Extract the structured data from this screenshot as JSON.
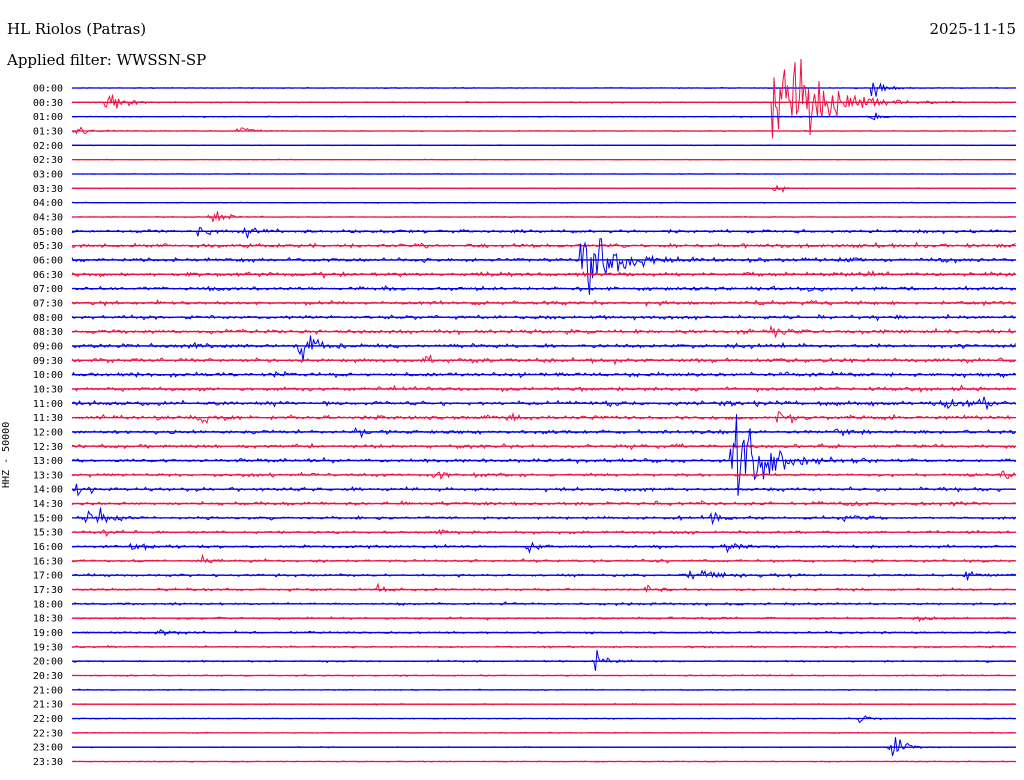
{
  "header": {
    "station": "HL Riolos (Patras)",
    "filter": "Applied filter: WWSSN-SP",
    "date": "2025-11-15",
    "channel": "HHZ - 50000"
  },
  "chart_data": {
    "type": "line",
    "title": "HL Riolos (Patras)",
    "subtitle": "Applied filter: WWSSN-SP",
    "ylabel": "HHZ - 50000",
    "y_tick_labels": [
      "00:00",
      "00:30",
      "01:00",
      "01:30",
      "02:00",
      "02:30",
      "03:00",
      "03:30",
      "04:00",
      "04:30",
      "05:00",
      "05:30",
      "06:00",
      "06:30",
      "07:00",
      "07:30",
      "08:00",
      "08:30",
      "09:00",
      "09:30",
      "10:00",
      "10:30",
      "11:00",
      "11:30",
      "12:00",
      "12:30",
      "13:00",
      "13:30",
      "14:00",
      "14:30",
      "15:00",
      "15:30",
      "16:00",
      "16:30",
      "17:00",
      "17:30",
      "18:00",
      "18:30",
      "19:00",
      "19:30",
      "20:00",
      "20:30",
      "21:00",
      "21:30",
      "22:00",
      "22:30",
      "23:00",
      "23:30"
    ],
    "line_minutes": 30,
    "trace_colors": [
      "#0000ee",
      "#ee1144"
    ],
    "noise_levels": [
      0.06,
      0.08,
      0.07,
      0.07,
      0.05,
      0.05,
      0.05,
      0.06,
      0.06,
      0.07,
      0.25,
      0.3,
      0.3,
      0.32,
      0.3,
      0.28,
      0.28,
      0.3,
      0.3,
      0.32,
      0.3,
      0.3,
      0.32,
      0.3,
      0.28,
      0.28,
      0.25,
      0.25,
      0.25,
      0.25,
      0.22,
      0.2,
      0.2,
      0.2,
      0.2,
      0.18,
      0.18,
      0.16,
      0.15,
      0.14,
      0.12,
      0.1,
      0.08,
      0.08,
      0.07,
      0.07,
      0.06,
      0.07
    ],
    "events": [
      {
        "line": 0,
        "minute": 25.4,
        "amplitude": 2.0
      },
      {
        "line": 1,
        "minute": 1.1,
        "amplitude": 3.2
      },
      {
        "line": 1,
        "minute": 22.3,
        "amplitude": 14.0
      },
      {
        "line": 2,
        "minute": 25.3,
        "amplitude": 1.2
      },
      {
        "line": 3,
        "minute": 0.1,
        "amplitude": 1.0
      },
      {
        "line": 3,
        "minute": 5.3,
        "amplitude": 1.0
      },
      {
        "line": 7,
        "minute": 22.3,
        "amplitude": 1.0
      },
      {
        "line": 9,
        "minute": 4.4,
        "amplitude": 1.6
      },
      {
        "line": 10,
        "minute": 4.0,
        "amplitude": 1.2
      },
      {
        "line": 10,
        "minute": 5.5,
        "amplitude": 1.0
      },
      {
        "line": 12,
        "minute": 16.2,
        "amplitude": 9.0
      },
      {
        "line": 17,
        "minute": 22.2,
        "amplitude": 1.2
      },
      {
        "line": 18,
        "minute": 7.2,
        "amplitude": 4.0
      },
      {
        "line": 18,
        "minute": 3.9,
        "amplitude": 0.6
      },
      {
        "line": 19,
        "minute": 11.2,
        "amplitude": 0.7
      },
      {
        "line": 21,
        "minute": 16.2,
        "amplitude": 0.7
      },
      {
        "line": 22,
        "minute": 27.8,
        "amplitude": 1.4
      },
      {
        "line": 22,
        "minute": 28.8,
        "amplitude": 1.2
      },
      {
        "line": 23,
        "minute": 4.0,
        "amplitude": 1.0
      },
      {
        "line": 23,
        "minute": 13.7,
        "amplitude": 1.2
      },
      {
        "line": 23,
        "minute": 22.4,
        "amplitude": 1.8
      },
      {
        "line": 24,
        "minute": 9.0,
        "amplitude": 1.0
      },
      {
        "line": 24,
        "minute": 24.3,
        "amplitude": 0.8
      },
      {
        "line": 26,
        "minute": 21.0,
        "amplitude": 10.0
      },
      {
        "line": 27,
        "minute": 11.5,
        "amplitude": 1.0
      },
      {
        "line": 27,
        "minute": 29.5,
        "amplitude": 1.0
      },
      {
        "line": 28,
        "minute": 0.1,
        "amplitude": 1.0
      },
      {
        "line": 29,
        "minute": 24.6,
        "amplitude": 0.9
      },
      {
        "line": 30,
        "minute": 0.5,
        "amplitude": 3.0
      },
      {
        "line": 30,
        "minute": 20.1,
        "amplitude": 1.4
      },
      {
        "line": 30,
        "minute": 24.6,
        "amplitude": 1.2
      },
      {
        "line": 31,
        "minute": 1.0,
        "amplitude": 1.0
      },
      {
        "line": 31,
        "minute": 11.6,
        "amplitude": 0.8
      },
      {
        "line": 32,
        "minute": 1.9,
        "amplitude": 1.2
      },
      {
        "line": 32,
        "minute": 14.5,
        "amplitude": 1.2
      },
      {
        "line": 32,
        "minute": 20.7,
        "amplitude": 1.2
      },
      {
        "line": 33,
        "minute": 4.1,
        "amplitude": 0.8
      },
      {
        "line": 34,
        "minute": 19.5,
        "amplitude": 1.0
      },
      {
        "line": 34,
        "minute": 20.1,
        "amplitude": 1.0
      },
      {
        "line": 34,
        "minute": 28.4,
        "amplitude": 1.0
      },
      {
        "line": 35,
        "minute": 9.7,
        "amplitude": 1.2
      },
      {
        "line": 35,
        "minute": 18.2,
        "amplitude": 1.0
      },
      {
        "line": 37,
        "minute": 26.8,
        "amplitude": 1.0
      },
      {
        "line": 38,
        "minute": 2.7,
        "amplitude": 1.0
      },
      {
        "line": 40,
        "minute": 16.6,
        "amplitude": 2.0
      },
      {
        "line": 44,
        "minute": 25.0,
        "amplitude": 0.8
      },
      {
        "line": 46,
        "minute": 26.0,
        "amplitude": 2.5
      }
    ]
  }
}
